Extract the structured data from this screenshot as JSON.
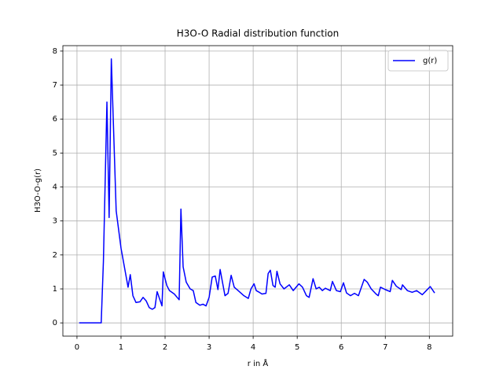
{
  "chart_data": {
    "type": "line",
    "title": "H3O-O Radial distribution function",
    "x_label": "r in Å",
    "y_label": "H3O-O-g(r)",
    "xlim": [
      -0.32,
      8.53
    ],
    "ylim": [
      -0.39,
      8.16
    ],
    "xticks": [
      0,
      1,
      2,
      3,
      4,
      5,
      6,
      7,
      8
    ],
    "yticks": [
      0,
      1,
      2,
      3,
      4,
      5,
      6,
      7,
      8
    ],
    "grid": true,
    "legend": "upper right",
    "x": [
      0.05,
      0.55,
      0.6,
      0.68,
      0.73,
      0.78,
      0.89,
      1.0,
      1.16,
      1.21,
      1.27,
      1.34,
      1.43,
      1.5,
      1.57,
      1.64,
      1.71,
      1.77,
      1.82,
      1.93,
      1.96,
      2.04,
      2.1,
      2.21,
      2.32,
      2.36,
      2.41,
      2.48,
      2.57,
      2.64,
      2.7,
      2.79,
      2.86,
      2.93,
      3.0,
      3.07,
      3.14,
      3.2,
      3.25,
      3.36,
      3.43,
      3.5,
      3.57,
      3.66,
      3.79,
      3.89,
      3.95,
      4.02,
      4.07,
      4.14,
      4.2,
      4.29,
      4.34,
      4.39,
      4.45,
      4.5,
      4.54,
      4.61,
      4.7,
      4.82,
      4.91,
      5.04,
      5.12,
      5.21,
      5.27,
      5.36,
      5.43,
      5.5,
      5.57,
      5.64,
      5.75,
      5.8,
      5.89,
      5.98,
      6.05,
      6.12,
      6.21,
      6.3,
      6.39,
      6.52,
      6.59,
      6.68,
      6.79,
      6.84,
      6.89,
      7.0,
      7.11,
      7.16,
      7.25,
      7.36,
      7.39,
      7.5,
      7.61,
      7.71,
      7.84,
      7.93,
      8.02,
      8.12
    ],
    "series": [
      {
        "name": "g(r)",
        "color": "#0000ff",
        "values": [
          0,
          0,
          1.8,
          6.5,
          3.1,
          7.77,
          3.3,
          2.2,
          1.05,
          1.42,
          0.8,
          0.6,
          0.62,
          0.75,
          0.65,
          0.45,
          0.4,
          0.45,
          0.92,
          0.5,
          1.5,
          1.1,
          0.95,
          0.85,
          0.68,
          3.35,
          1.65,
          1.2,
          1.0,
          0.95,
          0.6,
          0.52,
          0.55,
          0.5,
          0.75,
          1.35,
          1.38,
          0.98,
          1.57,
          0.8,
          0.87,
          1.4,
          1.05,
          0.95,
          0.8,
          0.72,
          1.0,
          1.15,
          0.95,
          0.9,
          0.85,
          0.87,
          1.45,
          1.55,
          1.1,
          1.05,
          1.52,
          1.15,
          1.0,
          1.12,
          0.95,
          1.15,
          1.05,
          0.8,
          0.75,
          1.3,
          1.0,
          1.05,
          0.95,
          1.02,
          0.95,
          1.22,
          0.95,
          0.92,
          1.18,
          0.88,
          0.8,
          0.87,
          0.8,
          1.28,
          1.2,
          1.0,
          0.85,
          0.8,
          1.05,
          0.98,
          0.92,
          1.25,
          1.08,
          0.98,
          1.12,
          0.95,
          0.9,
          0.95,
          0.83,
          0.95,
          1.07,
          0.88
        ]
      }
    ]
  }
}
